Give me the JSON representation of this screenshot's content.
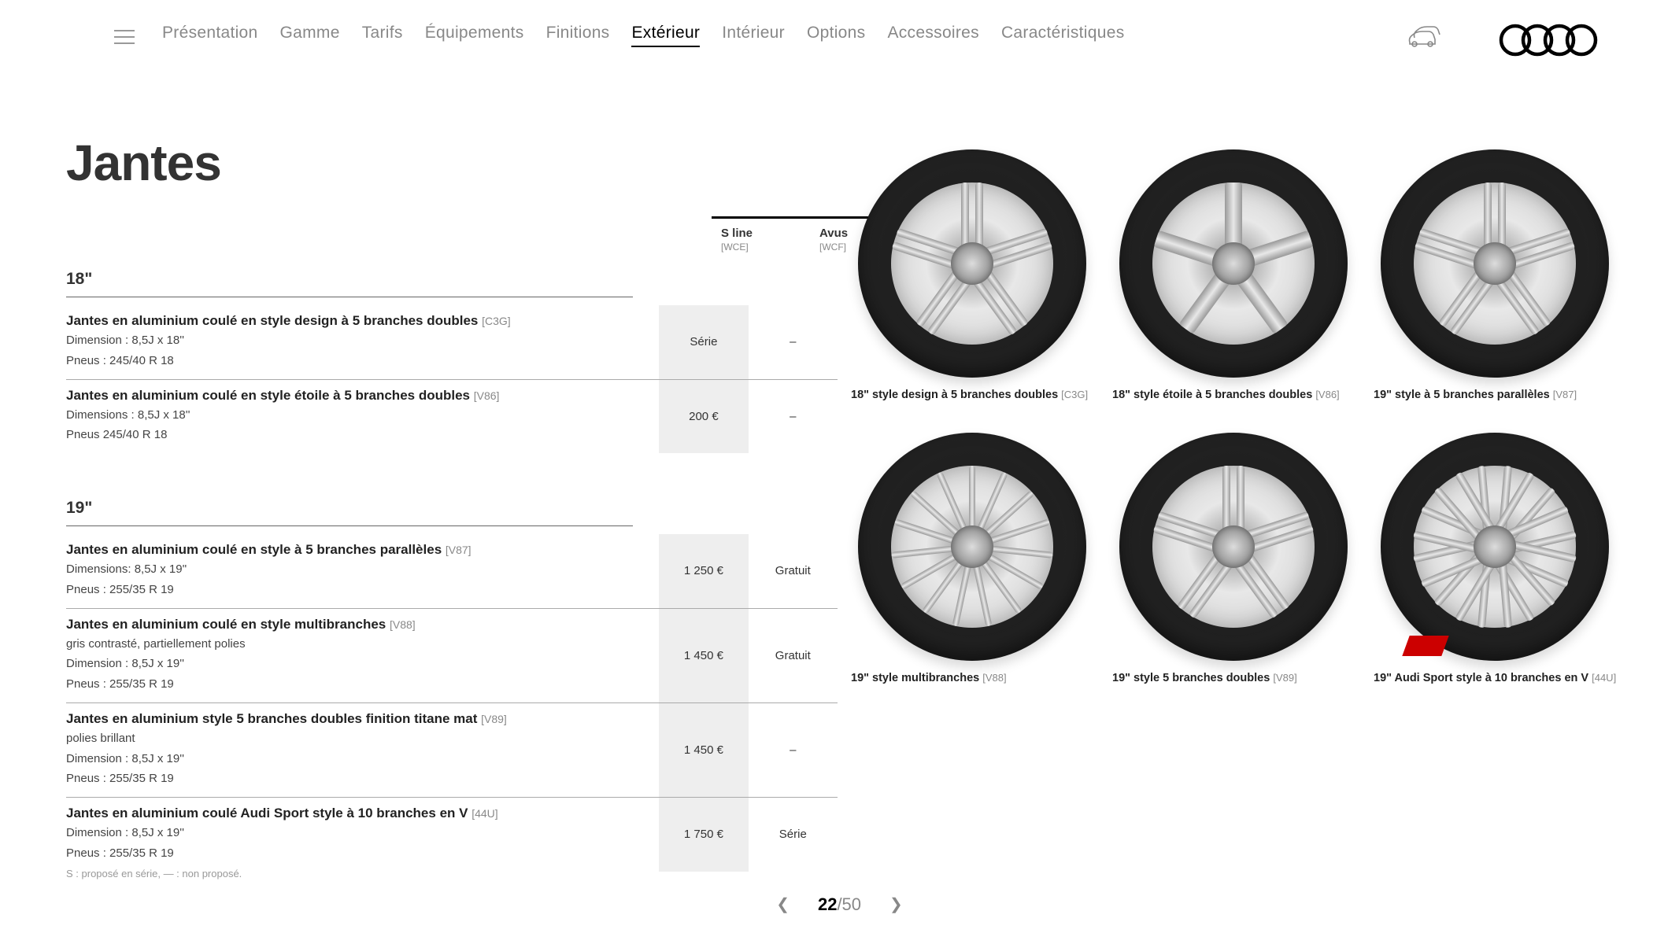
{
  "nav": {
    "items": [
      {
        "label": "Présentation"
      },
      {
        "label": "Gamme"
      },
      {
        "label": "Tarifs"
      },
      {
        "label": "Équipements"
      },
      {
        "label": "Finitions"
      },
      {
        "label": "Extérieur",
        "active": true
      },
      {
        "label": "Intérieur"
      },
      {
        "label": "Options"
      },
      {
        "label": "Accessoires"
      },
      {
        "label": "Caractéristiques"
      }
    ]
  },
  "page_title": "Jantes",
  "columns": [
    {
      "name": "S line",
      "code": "[WCE]",
      "bg": "#eeeeee"
    },
    {
      "name": "Avus",
      "code": "[WCF]",
      "bg": "#ffffff"
    }
  ],
  "sections": [
    {
      "heading": "18\"",
      "rows": [
        {
          "title": "Jantes en aluminium coulé en style design à 5 branches doubles",
          "code": "[C3G]",
          "desc": [
            "Dimension : 8,5J x 18''",
            "Pneus : 245/40 R 18"
          ],
          "prices": [
            "Série",
            "–"
          ]
        },
        {
          "title": "Jantes en aluminium coulé en style étoile à 5 branches doubles",
          "code": "[V86]",
          "desc": [
            "Dimensions : 8,5J x 18''",
            "Pneus 245/40 R 18"
          ],
          "prices": [
            "200 €",
            "–"
          ]
        }
      ]
    },
    {
      "heading": "19\"",
      "rows": [
        {
          "title": "Jantes en aluminium coulé en style à 5 branches parallèles",
          "code": "[V87]",
          "desc": [
            "Dimensions: 8,5J x 19''",
            "Pneus : 255/35 R 19"
          ],
          "prices": [
            "1 250 €",
            "Gratuit"
          ]
        },
        {
          "title": "Jantes en aluminium coulé en style multibranches",
          "code": "[V88]",
          "desc": [
            "gris contrasté, partiellement polies",
            "Dimension : 8,5J x 19''",
            "Pneus : 255/35 R 19"
          ],
          "prices": [
            "1 450 €",
            "Gratuit"
          ]
        },
        {
          "title": "Jantes en aluminium style 5 branches doubles finition titane mat",
          "code": "[V89]",
          "desc": [
            "polies brillant",
            "Dimension : 8,5J x 19''",
            "Pneus : 255/35 R 19"
          ],
          "prices": [
            "1 450 €",
            "–"
          ]
        },
        {
          "title": "Jantes en aluminium coulé Audi Sport style à 10 branches en V",
          "code": "[44U]",
          "desc": [
            "Dimension :  8,5J x 19''",
            "Pneus : 255/35 R 19"
          ],
          "prices": [
            "1 750 €",
            "Série"
          ]
        }
      ]
    }
  ],
  "wheels": [
    {
      "caption": "18\" style design à 5 branches doubles",
      "code": "[C3G]",
      "spokes": 5,
      "style": "double"
    },
    {
      "caption": "18\" style étoile à 5 branches doubles",
      "code": "[V86]",
      "spokes": 5,
      "style": "single"
    },
    {
      "caption": "19\" style à 5 branches parallèles",
      "code": "[V87]",
      "spokes": 5,
      "style": "double"
    },
    {
      "caption": "19\" style multibranches",
      "code": "[V88]",
      "spokes": 15,
      "style": "thin"
    },
    {
      "caption": "19\" style 5 branches doubles",
      "code": "[V89]",
      "spokes": 5,
      "style": "double"
    },
    {
      "caption": "19\" Audi Sport style à 10 branches en V",
      "code": "[44U]",
      "spokes": 10,
      "style": "v",
      "badge": true
    }
  ],
  "footnote": "S : proposé en série, — : non proposé.",
  "pager": {
    "current": "22",
    "total": "/50"
  }
}
